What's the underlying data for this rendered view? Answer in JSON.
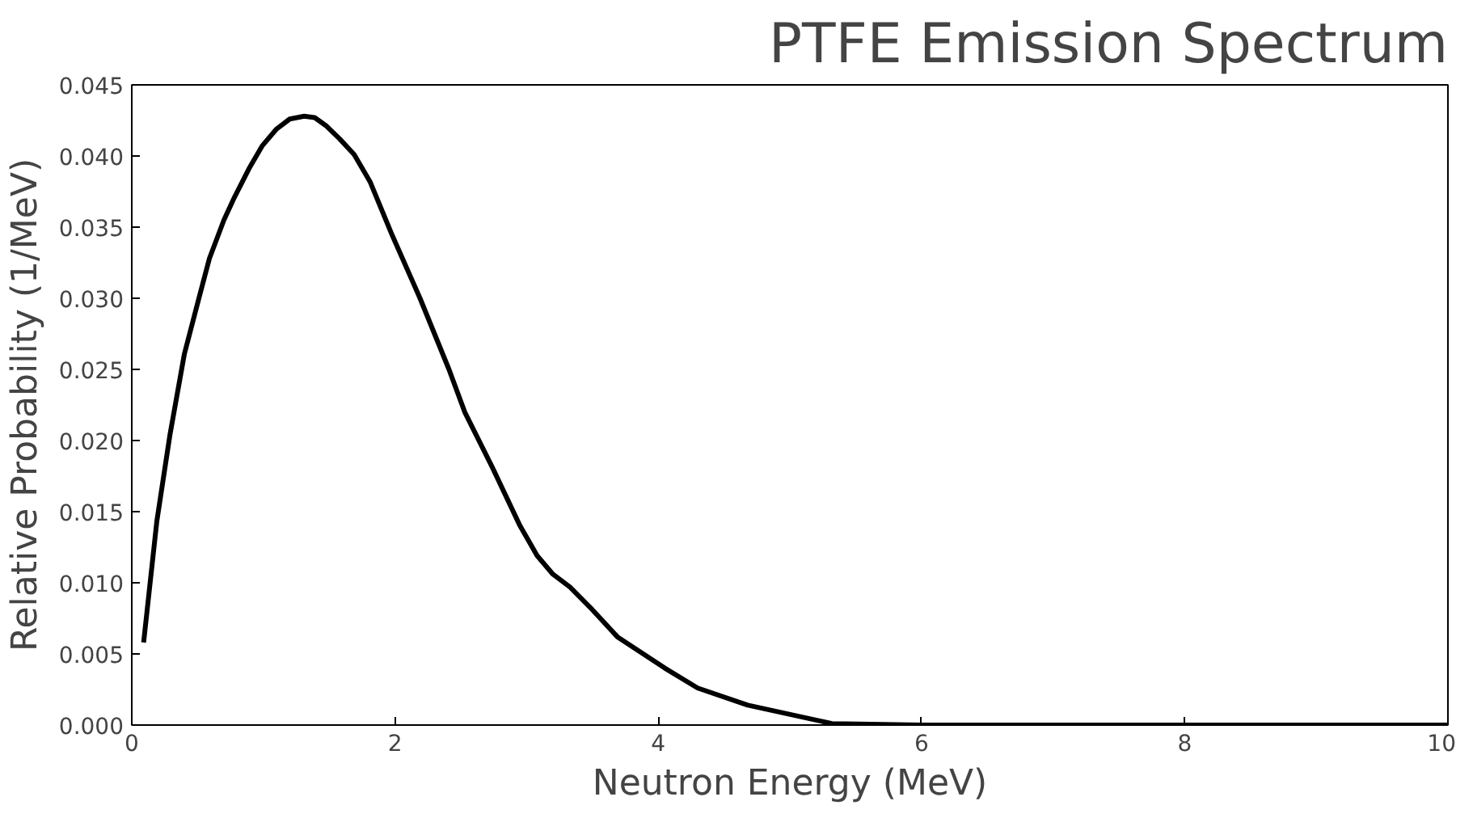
{
  "chart_data": {
    "type": "line",
    "title": "PTFE Emission Spectrum",
    "xlabel": "Neutron Energy (MeV)",
    "ylabel": "Relative Probability (1/MeV)",
    "x": [
      0.09,
      0.19,
      0.29,
      0.4,
      0.51,
      0.59,
      0.7,
      0.78,
      0.89,
      0.99,
      1.1,
      1.2,
      1.31,
      1.39,
      1.48,
      1.58,
      1.69,
      1.81,
      1.98,
      2.19,
      2.41,
      2.53,
      2.74,
      2.95,
      3.08,
      3.2,
      3.33,
      3.5,
      3.69,
      4.05,
      4.3,
      4.68,
      5.32,
      6.0,
      7.0,
      8.0,
      9.0,
      10.0
    ],
    "series": [
      {
        "color": "#000000",
        "values": [
          0.0058,
          0.0143,
          0.0204,
          0.0261,
          0.03,
          0.0328,
          0.0355,
          0.0371,
          0.0391,
          0.0407,
          0.0419,
          0.0426,
          0.0428,
          0.0427,
          0.0421,
          0.0412,
          0.0401,
          0.0382,
          0.0344,
          0.03,
          0.025,
          0.022,
          0.0181,
          0.014,
          0.0119,
          0.0106,
          0.0097,
          0.0081,
          0.0062,
          0.004,
          0.0026,
          0.0014,
          0.0001,
          0.0,
          0.0,
          0.0,
          0.0,
          0.0
        ]
      }
    ],
    "xlim": [
      0,
      10
    ],
    "ylim": [
      0,
      0.045
    ],
    "xticks": [
      0,
      2,
      4,
      6,
      8,
      10
    ],
    "yticks": [
      {
        "value": 0,
        "label": "0.000"
      },
      {
        "value": 0.005,
        "label": "0.005"
      },
      {
        "value": 0.01,
        "label": "0.010"
      },
      {
        "value": 0.015,
        "label": "0.015"
      },
      {
        "value": 0.02,
        "label": "0.020"
      },
      {
        "value": 0.025,
        "label": "0.025"
      },
      {
        "value": 0.03,
        "label": "0.030"
      },
      {
        "value": 0.035,
        "label": "0.035"
      },
      {
        "value": 0.04,
        "label": "0.040"
      },
      {
        "value": 0.045,
        "label": "0.045"
      }
    ],
    "grid": false,
    "marker": "none",
    "line_style": "solid"
  }
}
